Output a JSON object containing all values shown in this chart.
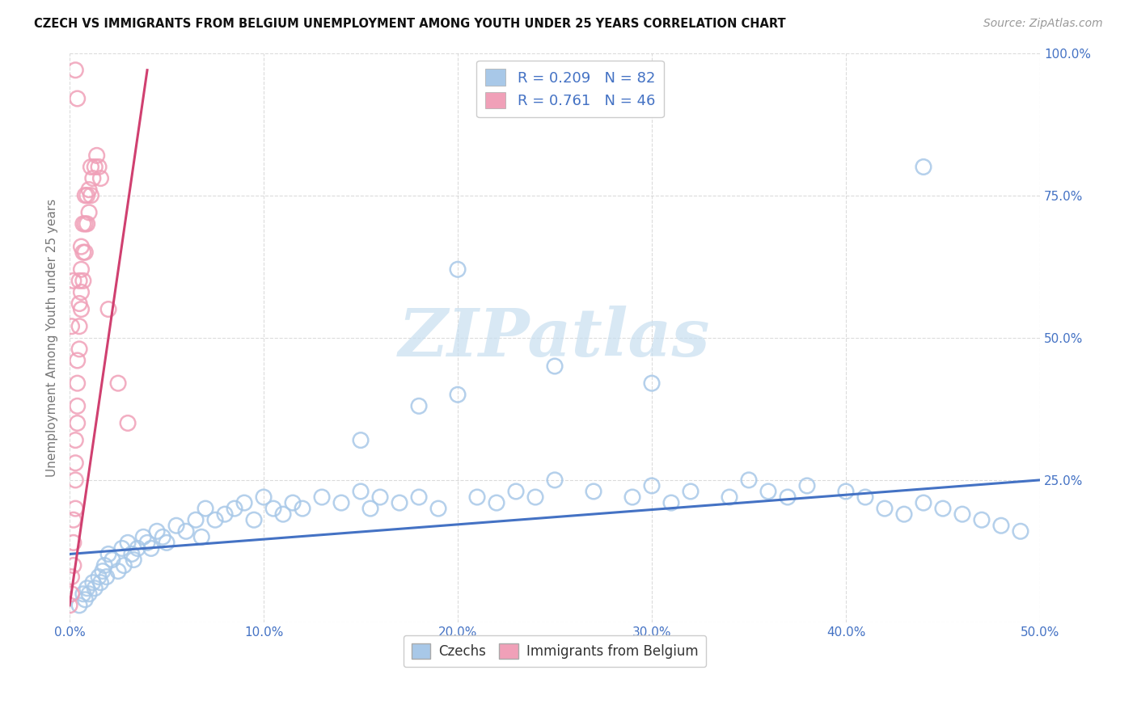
{
  "title": "CZECH VS IMMIGRANTS FROM BELGIUM UNEMPLOYMENT AMONG YOUTH UNDER 25 YEARS CORRELATION CHART",
  "source": "Source: ZipAtlas.com",
  "ylabel": "Unemployment Among Youth under 25 years",
  "xlim": [
    0.0,
    0.5
  ],
  "ylim": [
    0.0,
    1.0
  ],
  "xtick_vals": [
    0.0,
    0.1,
    0.2,
    0.3,
    0.4,
    0.5
  ],
  "xtick_labels": [
    "0.0%",
    "10.0%",
    "20.0%",
    "30.0%",
    "40.0%",
    "50.0%"
  ],
  "ytick_vals": [
    0.0,
    0.25,
    0.5,
    0.75,
    1.0
  ],
  "ytick_labels": [
    "",
    "25.0%",
    "50.0%",
    "75.0%",
    "100.0%"
  ],
  "legend_r_czech": "0.209",
  "legend_n_czech": "82",
  "legend_r_belgium": "0.761",
  "legend_n_belgium": "46",
  "czech_color": "#a8c8e8",
  "belgium_color": "#f0a0b8",
  "trend_czech_color": "#4472c4",
  "trend_belgium_color": "#d04070",
  "watermark_text": "ZIPatlas",
  "watermark_color": "#c8dff0",
  "background_color": "#ffffff",
  "czech_x": [
    0.005,
    0.007,
    0.008,
    0.009,
    0.01,
    0.012,
    0.013,
    0.015,
    0.016,
    0.017,
    0.018,
    0.019,
    0.02,
    0.022,
    0.025,
    0.027,
    0.028,
    0.03,
    0.032,
    0.033,
    0.035,
    0.038,
    0.04,
    0.042,
    0.045,
    0.048,
    0.05,
    0.055,
    0.06,
    0.065,
    0.068,
    0.07,
    0.075,
    0.08,
    0.085,
    0.09,
    0.095,
    0.1,
    0.105,
    0.11,
    0.115,
    0.12,
    0.13,
    0.14,
    0.15,
    0.155,
    0.16,
    0.17,
    0.18,
    0.19,
    0.2,
    0.21,
    0.22,
    0.23,
    0.24,
    0.25,
    0.27,
    0.29,
    0.3,
    0.31,
    0.32,
    0.34,
    0.35,
    0.36,
    0.37,
    0.38,
    0.4,
    0.41,
    0.42,
    0.43,
    0.44,
    0.45,
    0.46,
    0.47,
    0.48,
    0.49,
    0.44,
    0.3,
    0.2,
    0.18,
    0.15,
    0.25
  ],
  "czech_y": [
    0.03,
    0.05,
    0.04,
    0.06,
    0.05,
    0.07,
    0.06,
    0.08,
    0.07,
    0.09,
    0.1,
    0.08,
    0.12,
    0.11,
    0.09,
    0.13,
    0.1,
    0.14,
    0.12,
    0.11,
    0.13,
    0.15,
    0.14,
    0.13,
    0.16,
    0.15,
    0.14,
    0.17,
    0.16,
    0.18,
    0.15,
    0.2,
    0.18,
    0.19,
    0.2,
    0.21,
    0.18,
    0.22,
    0.2,
    0.19,
    0.21,
    0.2,
    0.22,
    0.21,
    0.23,
    0.2,
    0.22,
    0.21,
    0.22,
    0.2,
    0.4,
    0.22,
    0.21,
    0.23,
    0.22,
    0.25,
    0.23,
    0.22,
    0.24,
    0.21,
    0.23,
    0.22,
    0.25,
    0.23,
    0.22,
    0.24,
    0.23,
    0.22,
    0.2,
    0.19,
    0.21,
    0.2,
    0.19,
    0.18,
    0.17,
    0.16,
    0.8,
    0.42,
    0.62,
    0.38,
    0.32,
    0.45
  ],
  "belgium_x": [
    0.0,
    0.001,
    0.001,
    0.002,
    0.002,
    0.002,
    0.003,
    0.003,
    0.003,
    0.003,
    0.004,
    0.004,
    0.004,
    0.004,
    0.005,
    0.005,
    0.005,
    0.005,
    0.006,
    0.006,
    0.006,
    0.006,
    0.007,
    0.007,
    0.007,
    0.008,
    0.008,
    0.008,
    0.009,
    0.009,
    0.01,
    0.01,
    0.011,
    0.011,
    0.012,
    0.013,
    0.014,
    0.015,
    0.016,
    0.02,
    0.025,
    0.03,
    0.003,
    0.004,
    0.002,
    0.001
  ],
  "belgium_y": [
    0.03,
    0.05,
    0.08,
    0.1,
    0.14,
    0.18,
    0.2,
    0.25,
    0.28,
    0.32,
    0.35,
    0.38,
    0.42,
    0.46,
    0.48,
    0.52,
    0.56,
    0.6,
    0.55,
    0.58,
    0.62,
    0.66,
    0.6,
    0.65,
    0.7,
    0.65,
    0.7,
    0.75,
    0.7,
    0.75,
    0.72,
    0.76,
    0.75,
    0.8,
    0.78,
    0.8,
    0.82,
    0.8,
    0.78,
    0.55,
    0.42,
    0.35,
    0.97,
    0.92,
    0.6,
    0.52
  ],
  "trend_czech_x0": 0.0,
  "trend_czech_x1": 0.5,
  "trend_czech_y0": 0.12,
  "trend_czech_y1": 0.25,
  "trend_belgium_x0": 0.0,
  "trend_belgium_x1": 0.04,
  "trend_belgium_y0": 0.03,
  "trend_belgium_y1": 0.97
}
